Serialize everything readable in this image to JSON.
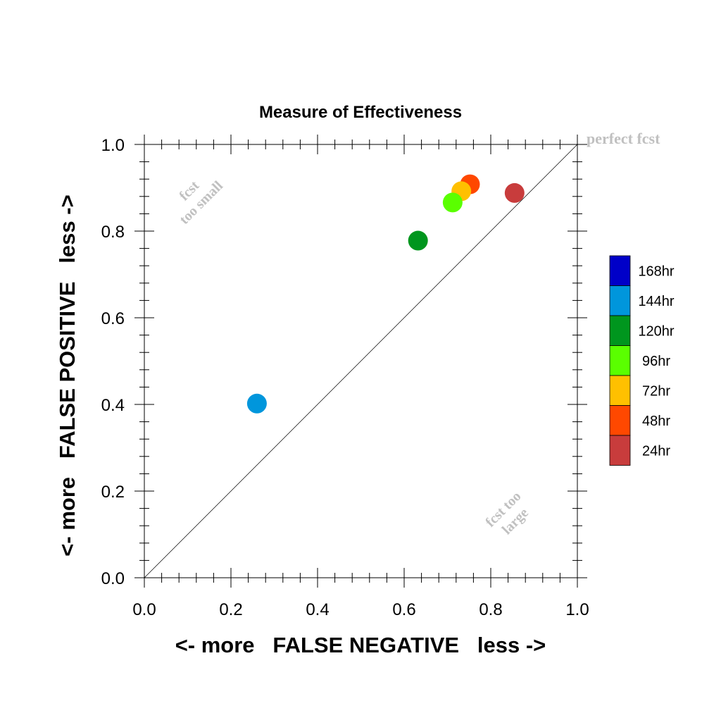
{
  "chart_data": {
    "type": "scatter",
    "title": "Measure of Effectiveness",
    "xlabel": "<- more   FALSE NEGATIVE   less ->",
    "ylabel": "<- more   FALSE POSITIVE   less ->",
    "xlim": [
      0.0,
      1.0
    ],
    "ylim": [
      0.0,
      1.0
    ],
    "xticks": [
      "0.0",
      "0.2",
      "0.4",
      "0.6",
      "0.8",
      "1.0"
    ],
    "yticks": [
      "0.0",
      "0.2",
      "0.4",
      "0.6",
      "0.8",
      "1.0"
    ],
    "grid": false,
    "diagonal_reference_line": true,
    "annotations": {
      "perfect": "perfect fcst",
      "too_small": [
        "fcst",
        "too small"
      ],
      "too_large": [
        "fcst too",
        "large"
      ]
    },
    "series": [
      {
        "name": "24hr",
        "color": "#c83c3c",
        "x": 0.855,
        "y": 0.888
      },
      {
        "name": "48hr",
        "color": "#ff4800",
        "x": 0.752,
        "y": 0.908
      },
      {
        "name": "72hr",
        "color": "#ffc000",
        "x": 0.732,
        "y": 0.892
      },
      {
        "name": "96hr",
        "color": "#5aff00",
        "x": 0.712,
        "y": 0.866
      },
      {
        "name": "120hr",
        "color": "#00961e",
        "x": 0.632,
        "y": 0.778
      },
      {
        "name": "144hr",
        "color": "#0096dc",
        "x": 0.26,
        "y": 0.402
      }
    ],
    "legend": {
      "placement": "right",
      "entries": [
        {
          "label": "168hr",
          "color": "#0000c8"
        },
        {
          "label": "144hr",
          "color": "#0096dc"
        },
        {
          "label": "120hr",
          "color": "#00961e"
        },
        {
          "label": "96hr",
          "color": "#5aff00"
        },
        {
          "label": "72hr",
          "color": "#ffc000"
        },
        {
          "label": "48hr",
          "color": "#ff4800"
        },
        {
          "label": "24hr",
          "color": "#c83c3c"
        }
      ]
    }
  }
}
